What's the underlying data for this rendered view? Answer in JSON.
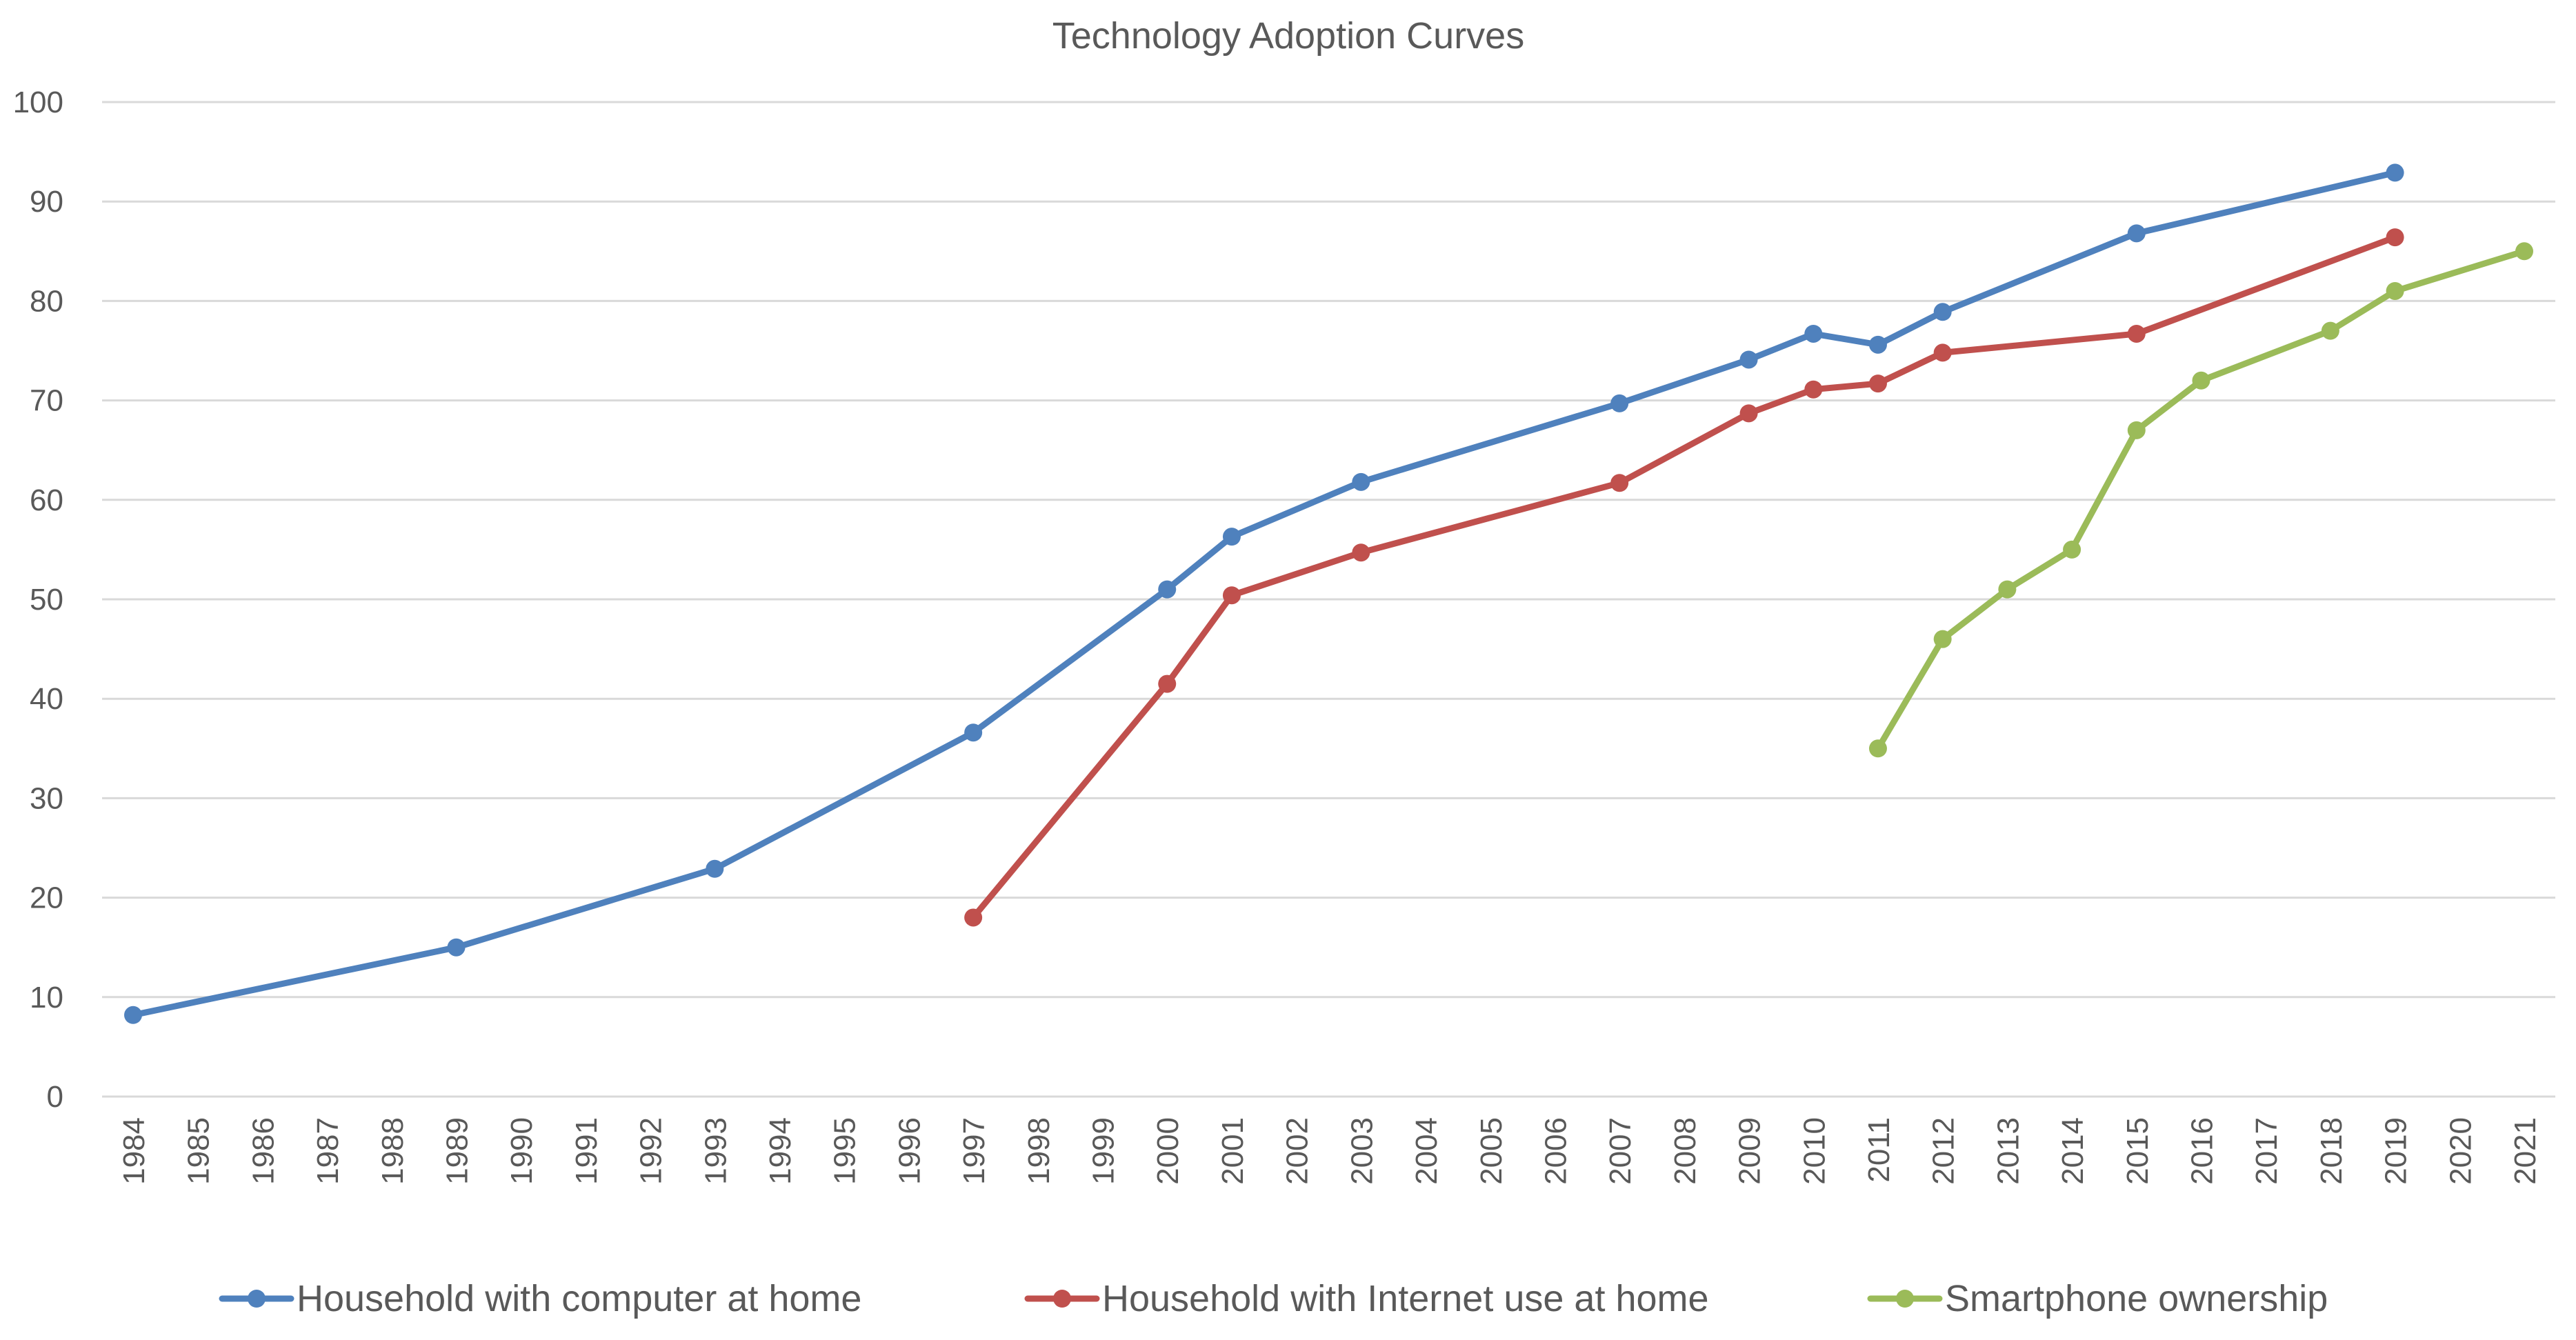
{
  "chart_data": {
    "type": "line",
    "title": "Technology Adoption Curves",
    "xlabel": "",
    "ylabel": "",
    "ylim": [
      0,
      100
    ],
    "yticks": [
      "0",
      "10",
      "20",
      "30",
      "40",
      "50",
      "60",
      "70",
      "80",
      "90",
      "100"
    ],
    "grid": true,
    "legend_position": "bottom",
    "categories": [
      "1984",
      "1985",
      "1986",
      "1987",
      "1988",
      "1989",
      "1990",
      "1991",
      "1992",
      "1993",
      "1994",
      "1995",
      "1996",
      "1997",
      "1998",
      "1999",
      "2000",
      "2001",
      "2002",
      "2003",
      "2004",
      "2005",
      "2006",
      "2007",
      "2008",
      "2009",
      "2010",
      "2011",
      "2012",
      "2013",
      "2014",
      "2015",
      "2016",
      "2017",
      "2018",
      "2019",
      "2020",
      "2021"
    ],
    "series": [
      {
        "name": "Household with computer at home",
        "color": "#4f81bd",
        "points": [
          {
            "x": "1984",
            "y": 8.2
          },
          {
            "x": "1989",
            "y": 15.0
          },
          {
            "x": "1993",
            "y": 22.9
          },
          {
            "x": "1997",
            "y": 36.6
          },
          {
            "x": "2000",
            "y": 51.0
          },
          {
            "x": "2001",
            "y": 56.3
          },
          {
            "x": "2003",
            "y": 61.8
          },
          {
            "x": "2007",
            "y": 69.7
          },
          {
            "x": "2009",
            "y": 74.1
          },
          {
            "x": "2010",
            "y": 76.7
          },
          {
            "x": "2011",
            "y": 75.6
          },
          {
            "x": "2012",
            "y": 78.9
          },
          {
            "x": "2015",
            "y": 86.8
          },
          {
            "x": "2019",
            "y": 92.9
          }
        ]
      },
      {
        "name": "Household with Internet use at home",
        "color": "#c0504d",
        "points": [
          {
            "x": "1997",
            "y": 18.0
          },
          {
            "x": "2000",
            "y": 41.5
          },
          {
            "x": "2001",
            "y": 50.4
          },
          {
            "x": "2003",
            "y": 54.7
          },
          {
            "x": "2007",
            "y": 61.7
          },
          {
            "x": "2009",
            "y": 68.7
          },
          {
            "x": "2010",
            "y": 71.1
          },
          {
            "x": "2011",
            "y": 71.7
          },
          {
            "x": "2012",
            "y": 74.8
          },
          {
            "x": "2015",
            "y": 76.7
          },
          {
            "x": "2019",
            "y": 86.4
          }
        ]
      },
      {
        "name": "Smartphone ownership",
        "color": "#9bbb59",
        "points": [
          {
            "x": "2011",
            "y": 35
          },
          {
            "x": "2012",
            "y": 46
          },
          {
            "x": "2013",
            "y": 51
          },
          {
            "x": "2014",
            "y": 55
          },
          {
            "x": "2015",
            "y": 67
          },
          {
            "x": "2016",
            "y": 72
          },
          {
            "x": "2018",
            "y": 77
          },
          {
            "x": "2019",
            "y": 81
          },
          {
            "x": "2021",
            "y": 85
          }
        ]
      }
    ]
  }
}
